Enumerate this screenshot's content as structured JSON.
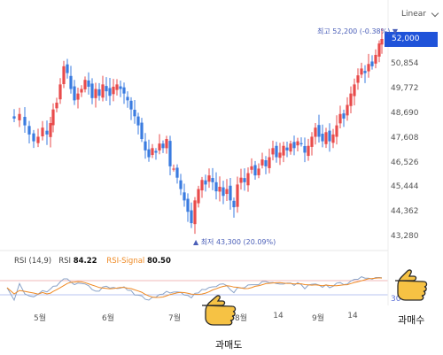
{
  "toolbar": {
    "scale_label": "Linear"
  },
  "price": {
    "current_label": "52,000",
    "high_annotation": "최고 52,200 (-0.38%) ▼",
    "low_annotation": "▲ 최저 43,300 (20.09%)",
    "rsi_30_label": "30"
  },
  "rsi_legend": {
    "name": "RSI (14,9)",
    "rsi_label": "RSI",
    "rsi_value": "84.22",
    "signal_label": "RSI-Signal",
    "signal_value": "80.50"
  },
  "callouts": {
    "overbought": "과매수",
    "oversold": "과매도"
  },
  "colors": {
    "up": "#e84b4b",
    "down": "#3a7be0",
    "accent": "#1f53d9",
    "rsi_line": "#8aa3c8",
    "signal_line": "#ef8a24",
    "hand": "#f6c244"
  },
  "chart_data": {
    "type": "candlestick",
    "y_ticks": [
      "52,000",
      "50,854",
      "49,772",
      "48,690",
      "47,608",
      "46,526",
      "45,444",
      "44,362",
      "43,280"
    ],
    "y_tick_values": [
      52000,
      50854,
      49772,
      48690,
      47608,
      46526,
      45444,
      44362,
      43280
    ],
    "ylim": [
      43000,
      52200
    ],
    "x_ticks": [
      {
        "label": "5월",
        "pos": 45
      },
      {
        "label": "6월",
        "pos": 122
      },
      {
        "label": "7월",
        "pos": 197
      },
      {
        "label": "8월",
        "pos": 272
      },
      {
        "label": "14",
        "pos": 314
      },
      {
        "label": "9월",
        "pos": 359
      },
      {
        "label": "14",
        "pos": 398
      }
    ],
    "close_path": [
      [
        8,
        48600
      ],
      [
        16,
        48500
      ],
      [
        22,
        48700
      ],
      [
        28,
        48200
      ],
      [
        33,
        47800
      ],
      [
        38,
        47500
      ],
      [
        43,
        47700
      ],
      [
        48,
        48100
      ],
      [
        53,
        47800
      ],
      [
        57,
        48300
      ],
      [
        60,
        48900
      ],
      [
        64,
        49200
      ],
      [
        68,
        50000
      ],
      [
        72,
        50800
      ],
      [
        76,
        50500
      ],
      [
        80,
        49800
      ],
      [
        84,
        49300
      ],
      [
        88,
        49600
      ],
      [
        92,
        49800
      ],
      [
        96,
        50200
      ],
      [
        100,
        49900
      ],
      [
        104,
        49400
      ],
      [
        108,
        49800
      ],
      [
        112,
        49500
      ],
      [
        116,
        50000
      ],
      [
        120,
        49700
      ],
      [
        124,
        49500
      ],
      [
        128,
        49900
      ],
      [
        132,
        50000
      ],
      [
        136,
        49800
      ],
      [
        140,
        49600
      ],
      [
        144,
        49300
      ],
      [
        148,
        48900
      ],
      [
        152,
        48600
      ],
      [
        156,
        48200
      ],
      [
        160,
        47600
      ],
      [
        164,
        47100
      ],
      [
        168,
        46800
      ],
      [
        172,
        47200
      ],
      [
        176,
        47000
      ],
      [
        180,
        47400
      ],
      [
        184,
        47200
      ],
      [
        188,
        47600
      ],
      [
        192,
        46400
      ],
      [
        196,
        46300
      ],
      [
        200,
        45900
      ],
      [
        204,
        45400
      ],
      [
        208,
        44900
      ],
      [
        212,
        44400
      ],
      [
        216,
        43900
      ],
      [
        220,
        44900
      ],
      [
        224,
        45400
      ],
      [
        228,
        45800
      ],
      [
        232,
        45600
      ],
      [
        236,
        46000
      ],
      [
        240,
        45700
      ],
      [
        244,
        45300
      ],
      [
        248,
        45500
      ],
      [
        252,
        45100
      ],
      [
        256,
        45400
      ],
      [
        260,
        44900
      ],
      [
        264,
        44600
      ],
      [
        268,
        45600
      ],
      [
        272,
        45900
      ],
      [
        276,
        45700
      ],
      [
        280,
        46100
      ],
      [
        284,
        46400
      ],
      [
        288,
        46000
      ],
      [
        292,
        46300
      ],
      [
        296,
        46700
      ],
      [
        300,
        46400
      ],
      [
        304,
        46800
      ],
      [
        308,
        47200
      ],
      [
        312,
        46800
      ],
      [
        316,
        47000
      ],
      [
        320,
        47300
      ],
      [
        324,
        47100
      ],
      [
        328,
        47400
      ],
      [
        332,
        47200
      ],
      [
        336,
        47500
      ],
      [
        340,
        47400
      ],
      [
        344,
        47000
      ],
      [
        348,
        47300
      ],
      [
        352,
        47700
      ],
      [
        356,
        48100
      ],
      [
        360,
        47700
      ],
      [
        364,
        47500
      ],
      [
        368,
        47900
      ],
      [
        372,
        47500
      ],
      [
        376,
        47800
      ],
      [
        380,
        48200
      ],
      [
        384,
        48700
      ],
      [
        388,
        48500
      ],
      [
        392,
        49100
      ],
      [
        396,
        49600
      ],
      [
        400,
        50000
      ],
      [
        404,
        50400
      ],
      [
        408,
        50700
      ],
      [
        412,
        50500
      ],
      [
        416,
        50900
      ],
      [
        420,
        50800
      ],
      [
        424,
        51300
      ],
      [
        428,
        51800
      ],
      [
        431,
        52000
      ]
    ],
    "rsi": {
      "value": 84.22,
      "signal": 80.5,
      "reference_level": 30
    }
  }
}
